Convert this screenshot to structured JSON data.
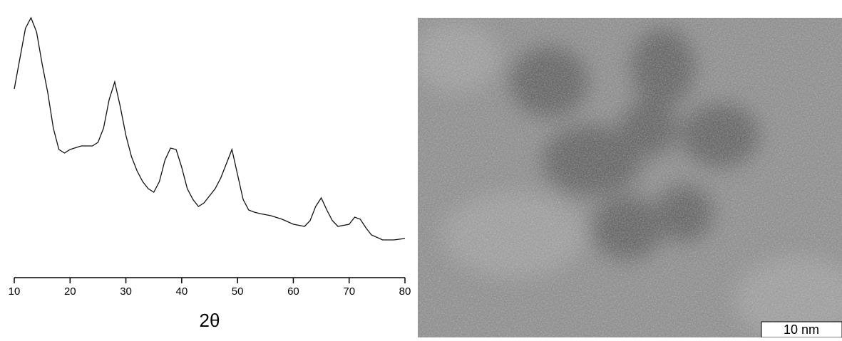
{
  "chart_data": {
    "type": "line",
    "x_label": "2θ",
    "x": [
      10,
      12,
      13,
      14,
      15,
      16,
      17,
      18,
      19,
      20,
      22,
      24,
      25,
      26,
      27,
      28,
      29,
      30,
      31,
      32,
      33,
      34,
      35,
      36,
      37,
      38,
      39,
      40,
      41,
      42,
      43,
      44,
      45,
      46,
      47,
      48,
      49,
      50,
      51,
      52,
      53,
      54,
      56,
      58,
      60,
      62,
      63,
      64,
      65,
      66,
      67,
      68,
      70,
      71,
      72,
      73,
      74,
      76,
      78,
      80
    ],
    "series": [
      {
        "color": "#111111",
        "values": [
          265,
          350,
          365,
          345,
          300,
          260,
          210,
          180,
          175,
          180,
          185,
          185,
          190,
          210,
          250,
          275,
          240,
          200,
          170,
          150,
          135,
          125,
          120,
          135,
          165,
          182,
          180,
          155,
          125,
          110,
          100,
          105,
          115,
          125,
          140,
          160,
          180,
          145,
          110,
          95,
          92,
          90,
          87,
          82,
          75,
          72,
          80,
          100,
          112,
          95,
          80,
          72,
          75,
          85,
          82,
          70,
          60,
          53,
          53,
          55
        ]
      }
    ],
    "xlim": [
      10,
      80
    ],
    "xticks": [
      10,
      20,
      30,
      40,
      50,
      60,
      70,
      80
    ],
    "ylim": [
      0,
      370
    ]
  },
  "scale_bar_label": "10 nm"
}
